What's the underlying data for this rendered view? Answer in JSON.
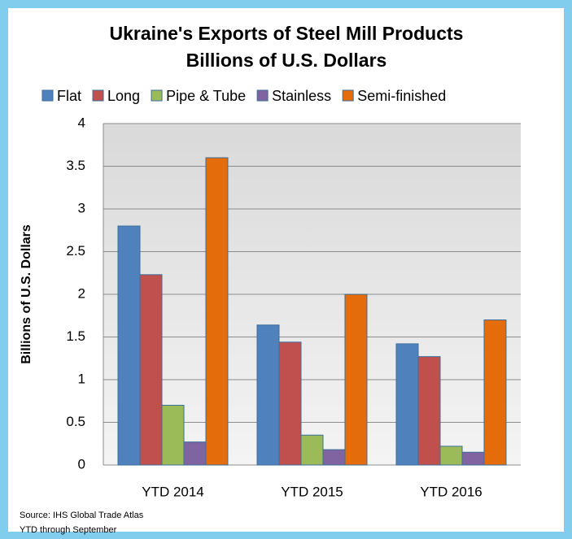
{
  "chart_data": {
    "type": "bar",
    "title": "Ukraine's Exports of Steel Mill Products",
    "subtitle": "Billions of U.S. Dollars",
    "y_label": "Billions of U.S. Dollars",
    "categories": [
      "YTD 2014",
      "YTD 2015",
      "YTD 2016"
    ],
    "series": [
      {
        "name": "Flat",
        "color": "#4f81bd",
        "values": [
          2.8,
          1.64,
          1.42
        ]
      },
      {
        "name": "Long",
        "color": "#c0504d",
        "values": [
          2.23,
          1.44,
          1.27
        ]
      },
      {
        "name": "Pipe & Tube",
        "color": "#9bbb59",
        "values": [
          0.7,
          0.35,
          0.22
        ]
      },
      {
        "name": "Stainless",
        "color": "#8064a2",
        "values": [
          0.27,
          0.18,
          0.15
        ]
      },
      {
        "name": "Semi-finished",
        "color": "#e46c0a",
        "values": [
          3.6,
          2.0,
          1.7
        ]
      }
    ],
    "ylim": [
      0,
      4
    ],
    "yticks": [
      0,
      0.5,
      1,
      1.5,
      2,
      2.5,
      3,
      3.5,
      4
    ],
    "grid": true,
    "legend": "top",
    "notes": [
      "Source:  IHS Global Trade Atlas",
      "YTD  through September"
    ]
  }
}
